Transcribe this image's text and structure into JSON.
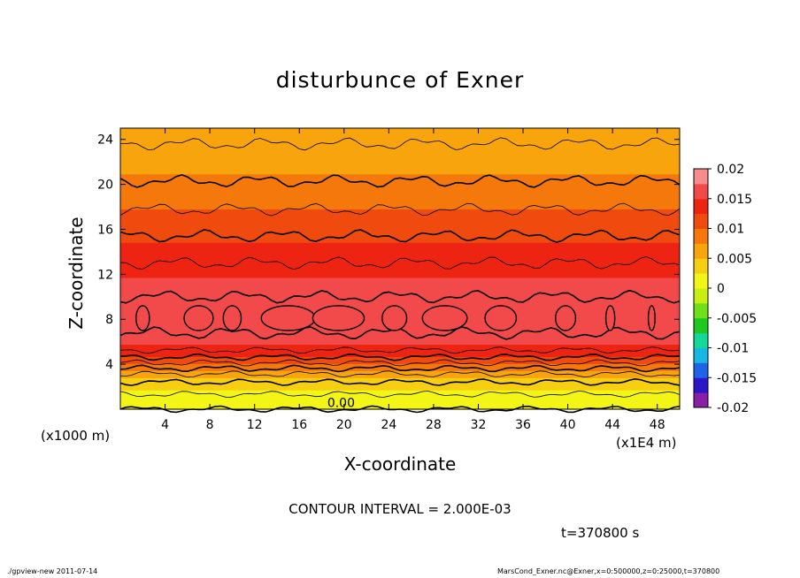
{
  "chart_data": {
    "type": "heatmap",
    "title": "disturbunce of Exner",
    "xlabel": "X-coordinate",
    "ylabel": "Z-coordinate",
    "x_unit_left": "(x1000 m)",
    "x_unit_right": "(x1E4 m)",
    "xlim": [
      0,
      50
    ],
    "ylim": [
      0,
      25
    ],
    "x_ticks": [
      4,
      8,
      12,
      16,
      20,
      24,
      28,
      32,
      36,
      40,
      44,
      48
    ],
    "y_ticks": [
      4,
      8,
      12,
      16,
      20,
      24
    ],
    "colorbar": {
      "range": [
        -0.02,
        0.02
      ],
      "ticks": [
        "0.02",
        "0.015",
        "0.01",
        "0.005",
        "0",
        "-0.005",
        "-0.01",
        "-0.015",
        "-0.02"
      ]
    },
    "contour_label": "0.00",
    "contour_interval_text": "CONTOUR INTERVAL = 2.000E-03",
    "time_text": "t=370800 s",
    "profile": {
      "z": [
        0,
        1,
        2,
        3,
        4,
        5,
        6,
        8,
        10,
        12,
        14,
        16,
        18,
        20,
        22,
        24,
        25
      ],
      "value": [
        0.0,
        0.0015,
        0.003,
        0.0055,
        0.0095,
        0.0135,
        0.0155,
        0.0168,
        0.016,
        0.0148,
        0.0132,
        0.0115,
        0.0098,
        0.0082,
        0.0068,
        0.0058,
        0.0052
      ]
    },
    "colors": {
      "palette": [
        "#8a1fa8",
        "#2c17c8",
        "#1f63e6",
        "#18b6e3",
        "#14d89a",
        "#1ec81e",
        "#6fe017",
        "#c8ee12",
        "#f2f516",
        "#f7cf12",
        "#f8a40c",
        "#f4780b",
        "#f04b0e",
        "#ee2412",
        "#f24a4a",
        "#f78c8c"
      ]
    }
  },
  "footer": {
    "left": "./gpview-new   2011-07-14",
    "right": "MarsCond_Exner.nc@Exner,x=0:500000,z=0:25000,t=370800"
  }
}
